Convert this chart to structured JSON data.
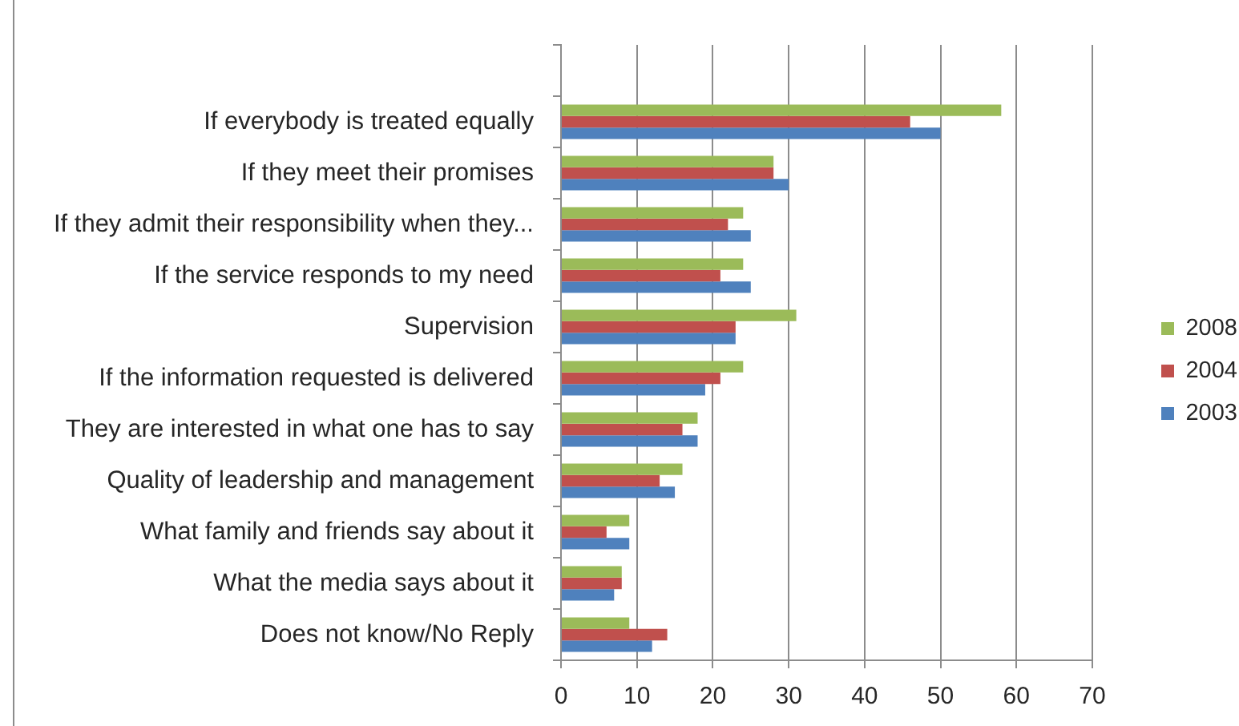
{
  "chart_data": {
    "type": "bar",
    "orientation": "horizontal",
    "categories": [
      null,
      "If everybody is treated equally",
      "If they meet their promises",
      "If they admit their responsibility when they...",
      "If the service responds to my need",
      "Supervision",
      "If the information requested is delivered",
      "They are interested in what one has to say",
      "Quality of leadership and management",
      "What family and friends say about it",
      "What the media says about it",
      "Does not know/No Reply"
    ],
    "series": [
      {
        "name": "2008",
        "color": "#9bbb59",
        "values": [
          null,
          58,
          28,
          24,
          24,
          31,
          24,
          18,
          16,
          9,
          8,
          9
        ]
      },
      {
        "name": "2004",
        "color": "#c0504d",
        "values": [
          null,
          46,
          28,
          22,
          21,
          23,
          21,
          16,
          13,
          6,
          8,
          14
        ]
      },
      {
        "name": "2003",
        "color": "#4f81bd",
        "values": [
          null,
          50,
          30,
          25,
          25,
          23,
          19,
          18,
          15,
          9,
          7,
          12
        ]
      }
    ],
    "xlim": [
      0,
      70
    ],
    "xticks": [
      0,
      10,
      20,
      30,
      40,
      50,
      60,
      70
    ],
    "grid": "x",
    "legend": "right"
  }
}
